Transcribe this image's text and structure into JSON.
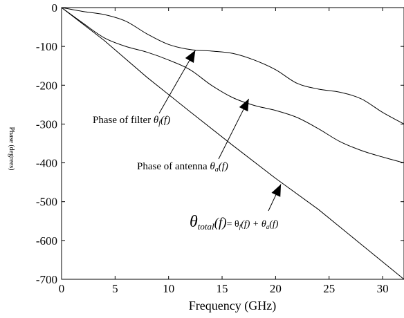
{
  "chart_data": {
    "type": "line",
    "xlabel": "Frequency (GHz)",
    "ylabel": "Phase (degrees)",
    "xlim": [
      0,
      32
    ],
    "ylim": [
      -700,
      0
    ],
    "x_ticks": [
      0,
      5,
      10,
      15,
      20,
      25,
      30
    ],
    "y_ticks": [
      0,
      -100,
      -200,
      -300,
      -400,
      -500,
      -600,
      -700
    ],
    "grid": false,
    "series": [
      {
        "name": "filter",
        "x": [
          0,
          2,
          4,
          6,
          8,
          10,
          12,
          14,
          16,
          18,
          20,
          22,
          24,
          26,
          28,
          30,
          32
        ],
        "y": [
          0,
          -10,
          -18,
          -35,
          -68,
          -95,
          -108,
          -112,
          -118,
          -135,
          -160,
          -195,
          -210,
          -218,
          -235,
          -270,
          -300
        ]
      },
      {
        "name": "antenna",
        "x": [
          0,
          2,
          4,
          6,
          8,
          10,
          12,
          14,
          16,
          18,
          20,
          22,
          24,
          26,
          28,
          30,
          32
        ],
        "y": [
          0,
          -40,
          -78,
          -100,
          -115,
          -135,
          -160,
          -200,
          -232,
          -252,
          -265,
          -283,
          -312,
          -345,
          -368,
          -385,
          -400
        ]
      },
      {
        "name": "total",
        "x": [
          0,
          4,
          8,
          12,
          16,
          20,
          24,
          28,
          32
        ],
        "y": [
          0,
          -85,
          -180,
          -268,
          -355,
          -440,
          -520,
          -610,
          -700
        ]
      }
    ],
    "annotations": [
      {
        "text_main": "Phase of filter ",
        "sym": "θ",
        "sub": "f",
        "suffix": "(f)",
        "arrow_to": [
          12.5,
          -110
        ]
      },
      {
        "text_main": "Phase of antenna ",
        "sym": "θ",
        "sub": "a",
        "suffix": "(f)",
        "arrow_to": [
          17.5,
          -235
        ]
      },
      {
        "sym": "θ",
        "sub": "total",
        "main_suffix": "(f)",
        "rest": "= θ",
        "rest_sub": "f",
        "rest2": "(f) + θ",
        "rest2_sub": "a",
        "rest3": "(f)",
        "arrow_to": [
          20.5,
          -455
        ]
      }
    ]
  }
}
